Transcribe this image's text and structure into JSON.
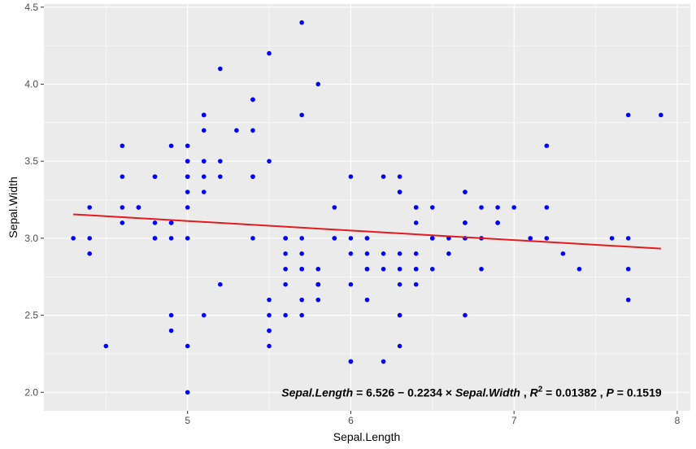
{
  "chart_data": {
    "type": "scatter",
    "title": "",
    "xlabel": "Sepal.Length",
    "ylabel": "Sepal.Width",
    "xlim": [
      4.12,
      8.08
    ],
    "ylim": [
      1.88,
      4.52
    ],
    "xticks": [
      5,
      6,
      7,
      8
    ],
    "yticks": [
      2.0,
      2.5,
      3.0,
      3.5,
      4.0,
      4.5
    ],
    "xtick_labels": [
      "5",
      "6",
      "7",
      "8"
    ],
    "ytick_labels": [
      "2.0",
      "2.5",
      "3.0",
      "3.5",
      "4.0",
      "4.5"
    ],
    "grid": true,
    "point_color": "#0000ff",
    "line_color": "#e41a1c",
    "panel_color": "#ebebeb",
    "points": [
      [
        5.1,
        3.5
      ],
      [
        4.9,
        3.0
      ],
      [
        4.7,
        3.2
      ],
      [
        4.6,
        3.1
      ],
      [
        5.0,
        3.6
      ],
      [
        5.4,
        3.9
      ],
      [
        4.6,
        3.4
      ],
      [
        5.0,
        3.4
      ],
      [
        4.4,
        2.9
      ],
      [
        4.9,
        3.1
      ],
      [
        5.4,
        3.7
      ],
      [
        4.8,
        3.4
      ],
      [
        4.8,
        3.0
      ],
      [
        4.3,
        3.0
      ],
      [
        5.8,
        4.0
      ],
      [
        5.7,
        4.4
      ],
      [
        5.4,
        3.9
      ],
      [
        5.1,
        3.5
      ],
      [
        5.7,
        3.8
      ],
      [
        5.1,
        3.8
      ],
      [
        5.4,
        3.4
      ],
      [
        5.1,
        3.7
      ],
      [
        4.6,
        3.6
      ],
      [
        5.1,
        3.3
      ],
      [
        4.8,
        3.4
      ],
      [
        5.0,
        3.0
      ],
      [
        5.0,
        3.4
      ],
      [
        5.2,
        3.5
      ],
      [
        5.2,
        3.4
      ],
      [
        4.7,
        3.2
      ],
      [
        4.8,
        3.1
      ],
      [
        5.4,
        3.4
      ],
      [
        5.2,
        4.1
      ],
      [
        5.5,
        4.2
      ],
      [
        4.9,
        3.1
      ],
      [
        5.0,
        3.2
      ],
      [
        5.5,
        3.5
      ],
      [
        4.9,
        3.6
      ],
      [
        4.4,
        3.0
      ],
      [
        5.1,
        3.4
      ],
      [
        5.0,
        3.5
      ],
      [
        4.5,
        2.3
      ],
      [
        4.4,
        3.2
      ],
      [
        5.0,
        3.5
      ],
      [
        5.1,
        3.8
      ],
      [
        4.8,
        3.0
      ],
      [
        5.1,
        3.8
      ],
      [
        4.6,
        3.2
      ],
      [
        5.3,
        3.7
      ],
      [
        5.0,
        3.3
      ],
      [
        7.0,
        3.2
      ],
      [
        6.4,
        3.2
      ],
      [
        6.9,
        3.1
      ],
      [
        5.5,
        2.3
      ],
      [
        6.5,
        2.8
      ],
      [
        5.7,
        2.8
      ],
      [
        6.3,
        3.3
      ],
      [
        4.9,
        2.4
      ],
      [
        6.6,
        2.9
      ],
      [
        5.2,
        2.7
      ],
      [
        5.0,
        2.0
      ],
      [
        5.9,
        3.0
      ],
      [
        6.0,
        2.2
      ],
      [
        6.1,
        2.9
      ],
      [
        5.6,
        2.9
      ],
      [
        6.7,
        3.1
      ],
      [
        5.6,
        3.0
      ],
      [
        5.8,
        2.7
      ],
      [
        6.2,
        2.2
      ],
      [
        5.6,
        2.5
      ],
      [
        5.9,
        3.2
      ],
      [
        6.1,
        2.8
      ],
      [
        6.3,
        2.5
      ],
      [
        6.1,
        2.8
      ],
      [
        6.4,
        2.9
      ],
      [
        6.6,
        3.0
      ],
      [
        6.8,
        2.8
      ],
      [
        6.7,
        3.0
      ],
      [
        6.0,
        2.9
      ],
      [
        5.7,
        2.6
      ],
      [
        5.5,
        2.4
      ],
      [
        5.5,
        2.4
      ],
      [
        5.8,
        2.7
      ],
      [
        6.0,
        2.7
      ],
      [
        5.4,
        3.0
      ],
      [
        6.0,
        3.4
      ],
      [
        6.7,
        3.1
      ],
      [
        6.3,
        2.3
      ],
      [
        5.6,
        3.0
      ],
      [
        5.5,
        2.5
      ],
      [
        5.5,
        2.6
      ],
      [
        6.1,
        3.0
      ],
      [
        5.8,
        2.6
      ],
      [
        5.0,
        2.3
      ],
      [
        5.6,
        2.7
      ],
      [
        5.7,
        3.0
      ],
      [
        5.7,
        2.9
      ],
      [
        6.2,
        2.9
      ],
      [
        5.1,
        2.5
      ],
      [
        5.7,
        2.8
      ],
      [
        6.3,
        3.3
      ],
      [
        5.8,
        2.7
      ],
      [
        7.1,
        3.0
      ],
      [
        6.3,
        2.9
      ],
      [
        6.5,
        3.0
      ],
      [
        7.6,
        3.0
      ],
      [
        4.9,
        2.5
      ],
      [
        7.3,
        2.9
      ],
      [
        6.7,
        2.5
      ],
      [
        7.2,
        3.6
      ],
      [
        6.5,
        3.2
      ],
      [
        6.4,
        2.7
      ],
      [
        6.8,
        3.0
      ],
      [
        5.7,
        2.5
      ],
      [
        5.8,
        2.8
      ],
      [
        6.4,
        3.2
      ],
      [
        6.5,
        3.0
      ],
      [
        7.7,
        3.8
      ],
      [
        7.7,
        2.6
      ],
      [
        6.0,
        2.2
      ],
      [
        6.9,
        3.2
      ],
      [
        5.6,
        2.8
      ],
      [
        7.7,
        2.8
      ],
      [
        6.3,
        2.7
      ],
      [
        6.7,
        3.3
      ],
      [
        7.2,
        3.2
      ],
      [
        6.2,
        2.8
      ],
      [
        6.1,
        3.0
      ],
      [
        6.4,
        2.8
      ],
      [
        7.2,
        3.0
      ],
      [
        7.4,
        2.8
      ],
      [
        7.9,
        3.8
      ],
      [
        6.4,
        2.8
      ],
      [
        6.3,
        2.8
      ],
      [
        6.1,
        2.6
      ],
      [
        7.7,
        3.0
      ],
      [
        6.3,
        3.4
      ],
      [
        6.4,
        3.1
      ],
      [
        6.0,
        3.0
      ],
      [
        6.9,
        3.1
      ],
      [
        6.7,
        3.1
      ],
      [
        6.9,
        3.1
      ],
      [
        5.8,
        2.7
      ],
      [
        6.8,
        3.2
      ],
      [
        6.7,
        3.3
      ],
      [
        6.7,
        3.0
      ],
      [
        6.3,
        2.5
      ],
      [
        6.5,
        3.0
      ],
      [
        6.2,
        3.4
      ],
      [
        5.9,
        3.0
      ]
    ],
    "fit_line": {
      "x": [
        4.3,
        7.9
      ],
      "y": [
        3.1553,
        2.9326
      ]
    },
    "annotation": {
      "lhs": "Sepal.Length",
      "eq": " = 6.526 − 0.2234 × ",
      "rhs": "Sepal.Width",
      "sep1": " , ",
      "r_label": "R",
      "r_sup": "2",
      "r_value": " = 0.01382 , ",
      "p_label": "P",
      "p_value": " = 0.1519",
      "anchor_x": 6.74,
      "anchor_y": 2.0
    }
  }
}
